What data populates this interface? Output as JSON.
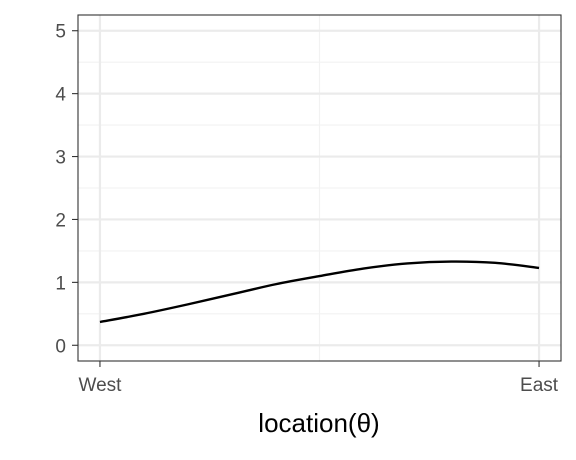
{
  "chart_data": {
    "type": "line",
    "title": "",
    "xlabel": "location(θ)",
    "ylabel": "",
    "x_tick_labels": [
      "West",
      "East"
    ],
    "y_ticks": [
      0,
      1,
      2,
      3,
      4,
      5
    ],
    "y_tick_labels": [
      "0",
      "1",
      "2",
      "3",
      "4",
      "5"
    ],
    "xlim": [
      -0.05,
      1.05
    ],
    "ylim": [
      -0.25,
      5.25
    ],
    "grid": true,
    "legend": "none",
    "series": [
      {
        "color": "#000000",
        "x": [
          0,
          0.1,
          0.2,
          0.3,
          0.4,
          0.5,
          0.6,
          0.7,
          0.8,
          0.9,
          1.0
        ],
        "y": [
          0.37,
          0.5,
          0.65,
          0.81,
          0.97,
          1.1,
          1.22,
          1.3,
          1.33,
          1.31,
          1.23
        ]
      }
    ]
  }
}
